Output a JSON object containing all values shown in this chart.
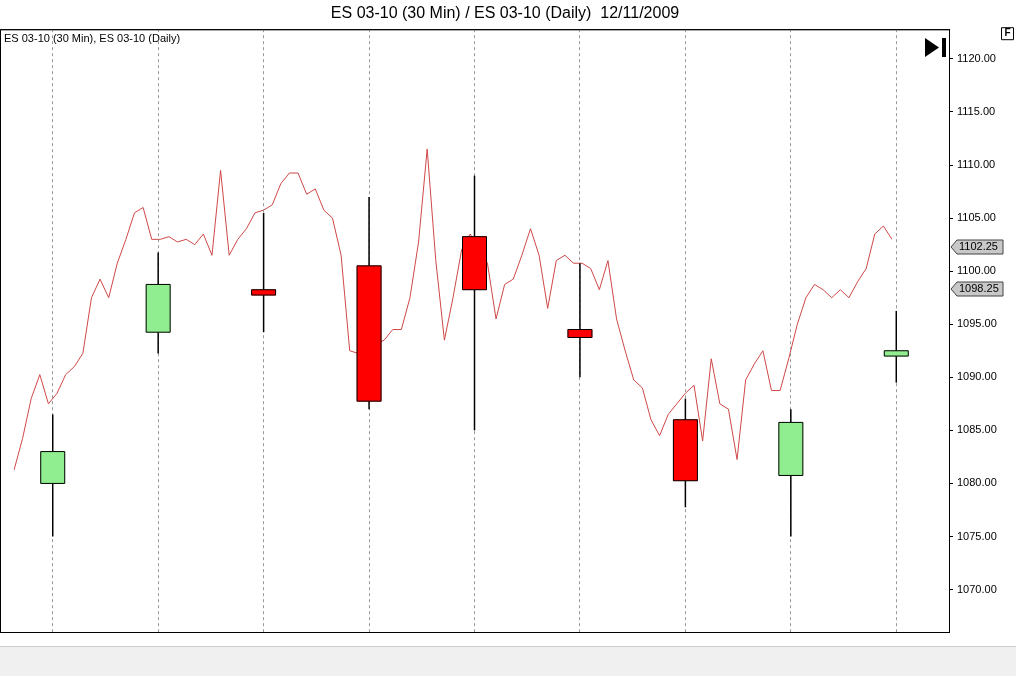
{
  "chart_data": [
    {
      "type": "candlestick",
      "title": "ES 03-10 (30 Min) / ES 03-10 (Daily)  12/11/2009",
      "annotations": [
        "ES 03-10 (30 Min), ES 03-10 (Daily)",
        "F",
        "1102.25",
        "1098.25"
      ],
      "categories": [
        null,
        null,
        null,
        null,
        null,
        null,
        null,
        null,
        null
      ],
      "ohlc": [
        [
          1080,
          1086.5,
          1075,
          1083
        ],
        [
          1094.25,
          1101.75,
          1092.25,
          1098.75
        ],
        [
          1098.25,
          1105.5,
          1094.25,
          1097.75
        ],
        [
          1100.5,
          1107,
          1087,
          1087.75
        ],
        [
          1103.25,
          1109,
          1085,
          1098.25
        ],
        [
          1094.5,
          1100.75,
          1090,
          1093.75
        ],
        [
          1086,
          1088,
          1077.75,
          1080.25
        ],
        [
          1080.75,
          1087,
          1075,
          1085.75
        ],
        [
          1092,
          1096.25,
          1089.5,
          1092.5
        ]
      ],
      "colors": [
        "#90ee90",
        "#90ee90",
        "#ff0000",
        "#ff0000",
        "#ff0000",
        "#ff0000",
        "#ff0000",
        "#90ee90",
        "#90ee90"
      ],
      "ylim": [
        1066,
        1122.8
      ],
      "yticks": [
        {
          "value": 1070,
          "label": "1070.00"
        },
        {
          "value": 1075,
          "label": "1075.00"
        },
        {
          "value": 1080,
          "label": "1080.00"
        },
        {
          "value": 1085,
          "label": "1085.00"
        },
        {
          "value": 1090,
          "label": "1090.00"
        },
        {
          "value": 1095,
          "label": "1095.00"
        },
        {
          "value": 1100,
          "label": "1100.00"
        },
        {
          "value": 1105,
          "label": "1105.00"
        },
        {
          "value": 1110,
          "label": "1110.00"
        },
        {
          "value": 1115,
          "label": "1115.00"
        },
        {
          "value": 1120,
          "label": "1120.00"
        }
      ],
      "grid": "x",
      "tick_labels": "y"
    },
    {
      "type": "line",
      "marker": "none",
      "categories": [
        null,
        null,
        null,
        null,
        null,
        null,
        null,
        null,
        null,
        null,
        null,
        null,
        null,
        null,
        null,
        null,
        null,
        null,
        null,
        null,
        null,
        null,
        null,
        null,
        null,
        null,
        null,
        null,
        null,
        null,
        null,
        null,
        null,
        null,
        null,
        null,
        null,
        null,
        null,
        null,
        null,
        null,
        null,
        null,
        null,
        null,
        null,
        null,
        null,
        null,
        null,
        null,
        null,
        null,
        null,
        null,
        null,
        null,
        null,
        null,
        null,
        null,
        null,
        null,
        null,
        null,
        null,
        null,
        null,
        null,
        null,
        null,
        null,
        null,
        null,
        null,
        null,
        null,
        null,
        null,
        null,
        null,
        null,
        null,
        null,
        null,
        null,
        null,
        null,
        null,
        null,
        null,
        null,
        null,
        null,
        null,
        null,
        null,
        null,
        null,
        null,
        null,
        null
      ],
      "series": [
        {
          "color": "#d04848",
          "values": [
            1081.25,
            1084.25,
            1088,
            1090.25,
            1087.5,
            1088.5,
            1090.25,
            1091,
            1092.25,
            1097.5,
            1099.25,
            1097.5,
            1100.75,
            1103,
            1105.5,
            1106,
            1103,
            1103,
            1103.25,
            1102.75,
            1103,
            1102.5,
            1103.5,
            1101.5,
            1109.5,
            1101.5,
            1103,
            1104,
            1105.5,
            1105.75,
            1106.25,
            1108.25,
            1109.25,
            1109.25,
            1107.25,
            1107.75,
            1105.75,
            1105,
            1101.5,
            1092.5,
            1092.25,
            null,
            null,
            1093.5,
            1094.5,
            1094.5,
            1097.5,
            1102.75,
            1111.5,
            1101,
            1093.5,
            1097.5,
            1102,
            1103.5,
            null,
            1100.75,
            1095.5,
            1098.75,
            1099.25,
            1101.5,
            1104,
            1101.5,
            1096.5,
            1101,
            1101.5,
            1100.75,
            1100.75,
            1100.25,
            1098.25,
            1101,
            1095.5,
            1092.5,
            1089.75,
            1089,
            1086,
            1084.5,
            1086.5,
            1087.5,
            1088.5,
            1089.25,
            1084,
            1091.75,
            1087.5,
            1087,
            1082.25,
            1089.75,
            1091.25,
            1092.5,
            1088.75,
            1088.75,
            1091.75,
            1095,
            1097.5,
            1098.75,
            1098.25,
            1097.5,
            1098.25,
            1097.5,
            1099,
            1100.25,
            1103.5,
            1104.25,
            1103
          ]
        }
      ],
      "ylim": [
        1066,
        1122.8
      ],
      "tick_labels": false
    }
  ]
}
